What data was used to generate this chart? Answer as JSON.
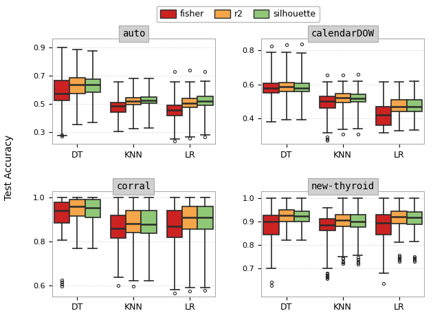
{
  "datasets": [
    "auto",
    "calendarDOW",
    "corral",
    "new-thyroid"
  ],
  "classifiers": [
    "DT",
    "KNN",
    "LR"
  ],
  "metrics": [
    "fisher",
    "r2",
    "silhouette"
  ],
  "colors": {
    "fisher": "#CC2222",
    "r2": "#F5A54A",
    "silhouette": "#90C878"
  },
  "edge_color": "#2A2A2A",
  "ylims": {
    "auto": [
      0.22,
      0.96
    ],
    "calendarDOW": [
      0.25,
      0.87
    ],
    "corral": [
      0.55,
      1.03
    ],
    "new-thyroid": [
      0.58,
      1.03
    ]
  },
  "yticks": {
    "auto": [
      0.3,
      0.5,
      0.7,
      0.9
    ],
    "calendarDOW": [
      0.4,
      0.6,
      0.8
    ],
    "corral": [
      0.6,
      0.8,
      1.0
    ],
    "new-thyroid": [
      0.7,
      0.8,
      0.9,
      1.0
    ]
  },
  "box_data": {
    "auto": {
      "DT": {
        "fisher": {
          "q1": 0.525,
          "median": 0.575,
          "q3": 0.665,
          "whislo": 0.28,
          "whishi": 0.9,
          "fliers": [
            0.275,
            0.285
          ]
        },
        "r2": {
          "q1": 0.575,
          "median": 0.635,
          "q3": 0.685,
          "whislo": 0.355,
          "whishi": 0.885,
          "fliers": []
        },
        "silhouette": {
          "q1": 0.585,
          "median": 0.635,
          "q3": 0.675,
          "whislo": 0.37,
          "whishi": 0.875,
          "fliers": []
        }
      },
      "KNN": {
        "fisher": {
          "q1": 0.445,
          "median": 0.485,
          "q3": 0.51,
          "whislo": 0.305,
          "whishi": 0.655,
          "fliers": []
        },
        "r2": {
          "q1": 0.495,
          "median": 0.52,
          "q3": 0.545,
          "whislo": 0.325,
          "whishi": 0.68,
          "fliers": []
        },
        "silhouette": {
          "q1": 0.505,
          "median": 0.525,
          "q3": 0.55,
          "whislo": 0.33,
          "whishi": 0.68,
          "fliers": []
        }
      },
      "LR": {
        "fisher": {
          "q1": 0.42,
          "median": 0.455,
          "q3": 0.49,
          "whislo": 0.255,
          "whishi": 0.655,
          "fliers": [
            0.24,
            0.73
          ]
        },
        "r2": {
          "q1": 0.475,
          "median": 0.505,
          "q3": 0.54,
          "whislo": 0.27,
          "whishi": 0.655,
          "fliers": [
            0.26,
            0.74
          ]
        },
        "silhouette": {
          "q1": 0.49,
          "median": 0.52,
          "q3": 0.555,
          "whislo": 0.285,
          "whishi": 0.66,
          "fliers": [
            0.27,
            0.73
          ]
        }
      }
    },
    "calendarDOW": {
      "DT": {
        "fisher": {
          "q1": 0.55,
          "median": 0.58,
          "q3": 0.605,
          "whislo": 0.38,
          "whishi": 0.79,
          "fliers": [
            0.825
          ]
        },
        "r2": {
          "q1": 0.56,
          "median": 0.585,
          "q3": 0.61,
          "whislo": 0.39,
          "whishi": 0.79,
          "fliers": [
            0.835
          ]
        },
        "silhouette": {
          "q1": 0.558,
          "median": 0.58,
          "q3": 0.605,
          "whislo": 0.39,
          "whishi": 0.785,
          "fliers": [
            0.838
          ]
        }
      },
      "KNN": {
        "fisher": {
          "q1": 0.46,
          "median": 0.5,
          "q3": 0.53,
          "whislo": 0.315,
          "whishi": 0.615,
          "fliers": [
            0.27,
            0.28,
            0.29,
            0.655
          ]
        },
        "r2": {
          "q1": 0.495,
          "median": 0.52,
          "q3": 0.545,
          "whislo": 0.335,
          "whishi": 0.62,
          "fliers": [
            0.305,
            0.655
          ]
        },
        "silhouette": {
          "q1": 0.498,
          "median": 0.518,
          "q3": 0.542,
          "whislo": 0.34,
          "whishi": 0.62,
          "fliers": [
            0.305,
            0.658
          ]
        }
      },
      "LR": {
        "fisher": {
          "q1": 0.36,
          "median": 0.42,
          "q3": 0.47,
          "whislo": 0.315,
          "whishi": 0.615,
          "fliers": []
        },
        "r2": {
          "q1": 0.44,
          "median": 0.47,
          "q3": 0.51,
          "whislo": 0.325,
          "whishi": 0.615,
          "fliers": []
        },
        "silhouette": {
          "q1": 0.44,
          "median": 0.47,
          "q3": 0.51,
          "whislo": 0.33,
          "whishi": 0.62,
          "fliers": []
        }
      }
    },
    "corral": {
      "DT": {
        "fisher": {
          "q1": 0.885,
          "median": 0.94,
          "q3": 0.98,
          "whislo": 0.805,
          "whishi": 1.0,
          "fliers": [
            0.595,
            0.605,
            0.615,
            0.625
          ]
        },
        "r2": {
          "q1": 0.915,
          "median": 0.96,
          "q3": 0.99,
          "whislo": 0.77,
          "whishi": 1.0,
          "fliers": []
        },
        "silhouette": {
          "q1": 0.91,
          "median": 0.955,
          "q3": 0.99,
          "whislo": 0.77,
          "whishi": 1.0,
          "fliers": []
        }
      },
      "KNN": {
        "fisher": {
          "q1": 0.815,
          "median": 0.86,
          "q3": 0.92,
          "whislo": 0.635,
          "whishi": 1.0,
          "fliers": [
            0.6
          ]
        },
        "r2": {
          "q1": 0.84,
          "median": 0.88,
          "q3": 0.94,
          "whislo": 0.62,
          "whishi": 1.0,
          "fliers": [
            0.595
          ]
        },
        "silhouette": {
          "q1": 0.838,
          "median": 0.878,
          "q3": 0.942,
          "whislo": 0.62,
          "whishi": 1.0,
          "fliers": []
        }
      },
      "LR": {
        "fisher": {
          "q1": 0.82,
          "median": 0.87,
          "q3": 0.94,
          "whislo": 0.58,
          "whishi": 1.0,
          "fliers": [
            0.565
          ]
        },
        "r2": {
          "q1": 0.855,
          "median": 0.91,
          "q3": 0.96,
          "whislo": 0.59,
          "whishi": 1.0,
          "fliers": [
            0.575
          ]
        },
        "silhouette": {
          "q1": 0.855,
          "median": 0.91,
          "q3": 0.96,
          "whislo": 0.59,
          "whishi": 1.0,
          "fliers": [
            0.578
          ]
        }
      }
    },
    "new-thyroid": {
      "DT": {
        "fisher": {
          "q1": 0.845,
          "median": 0.9,
          "q3": 0.925,
          "whislo": 0.7,
          "whishi": 1.0,
          "fliers": [
            0.64,
            0.625
          ]
        },
        "r2": {
          "q1": 0.9,
          "median": 0.925,
          "q3": 0.95,
          "whislo": 0.82,
          "whishi": 1.0,
          "fliers": []
        },
        "silhouette": {
          "q1": 0.9,
          "median": 0.922,
          "q3": 0.945,
          "whislo": 0.82,
          "whishi": 1.0,
          "fliers": []
        }
      },
      "KNN": {
        "fisher": {
          "q1": 0.86,
          "median": 0.885,
          "q3": 0.91,
          "whislo": 0.7,
          "whishi": 0.96,
          "fliers": [
            0.655,
            0.66,
            0.665,
            0.67,
            0.675,
            0.68
          ]
        },
        "r2": {
          "q1": 0.88,
          "median": 0.905,
          "q3": 0.93,
          "whislo": 0.75,
          "whishi": 1.0,
          "fliers": [
            0.72,
            0.725,
            0.73,
            0.74,
            0.745
          ]
        },
        "silhouette": {
          "q1": 0.877,
          "median": 0.9,
          "q3": 0.928,
          "whislo": 0.755,
          "whishi": 1.0,
          "fliers": [
            0.718,
            0.722,
            0.728,
            0.738,
            0.748
          ]
        }
      },
      "LR": {
        "fisher": {
          "q1": 0.845,
          "median": 0.895,
          "q3": 0.93,
          "whislo": 0.68,
          "whishi": 1.0,
          "fliers": [
            0.635
          ]
        },
        "r2": {
          "q1": 0.89,
          "median": 0.92,
          "q3": 0.945,
          "whislo": 0.81,
          "whishi": 1.0,
          "fliers": [
            0.73,
            0.735,
            0.74,
            0.745,
            0.75,
            0.755
          ]
        },
        "silhouette": {
          "q1": 0.888,
          "median": 0.918,
          "q3": 0.942,
          "whislo": 0.815,
          "whishi": 1.0,
          "fliers": [
            0.73,
            0.735,
            0.74,
            0.745,
            0.75
          ]
        }
      }
    }
  }
}
